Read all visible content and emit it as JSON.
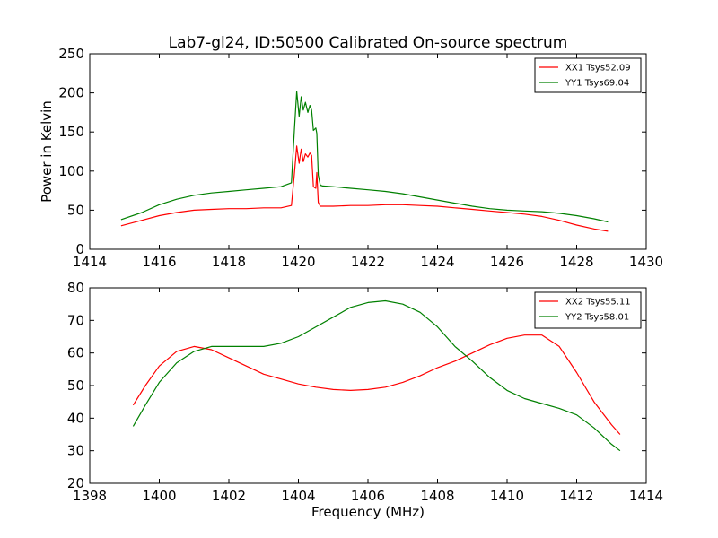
{
  "figure": {
    "title": "Lab7-gl24, ID:50500 Calibrated On-source spectrum"
  },
  "chart_data": [
    {
      "type": "line",
      "title": "Lab7-gl24, ID:50500 Calibrated On-source spectrum",
      "xlabel": "",
      "ylabel": "Power in Kelvin",
      "xlim": [
        1414,
        1430
      ],
      "ylim": [
        0,
        250
      ],
      "xticks": [
        1414,
        1416,
        1418,
        1420,
        1422,
        1424,
        1426,
        1428,
        1430
      ],
      "yticks": [
        0,
        50,
        100,
        150,
        200,
        250
      ],
      "grid": false,
      "legend_position": "top-right",
      "series": [
        {
          "name": "XX1 Tsys52.09",
          "color": "#ff0000",
          "x": [
            1414.9,
            1415.5,
            1416.0,
            1416.5,
            1417.0,
            1417.5,
            1418.0,
            1418.5,
            1419.0,
            1419.5,
            1419.8,
            1419.88,
            1419.95,
            1420.02,
            1420.08,
            1420.14,
            1420.2,
            1420.27,
            1420.33,
            1420.38,
            1420.43,
            1420.5,
            1420.53,
            1420.57,
            1420.63,
            1420.7,
            1421.0,
            1421.5,
            1422.0,
            1422.5,
            1423.0,
            1423.5,
            1424.0,
            1424.5,
            1425.0,
            1425.5,
            1426.0,
            1426.5,
            1427.0,
            1427.5,
            1428.0,
            1428.5,
            1428.9
          ],
          "values": [
            30,
            37,
            43,
            47,
            50,
            51,
            52,
            52,
            53,
            53,
            56,
            95,
            132,
            110,
            128,
            112,
            122,
            118,
            123,
            120,
            80,
            78,
            98,
            60,
            55,
            55,
            55,
            56,
            56,
            57,
            57,
            56,
            55,
            53,
            51,
            49,
            47,
            45,
            42,
            37,
            31,
            26,
            23
          ]
        },
        {
          "name": "YY1 Tsys69.04",
          "color": "#008000",
          "x": [
            1414.9,
            1415.5,
            1416.0,
            1416.5,
            1417.0,
            1417.5,
            1418.0,
            1418.5,
            1419.0,
            1419.5,
            1419.8,
            1419.88,
            1419.95,
            1420.02,
            1420.08,
            1420.14,
            1420.2,
            1420.27,
            1420.33,
            1420.38,
            1420.43,
            1420.5,
            1420.53,
            1420.57,
            1420.63,
            1420.7,
            1421.0,
            1421.5,
            1422.0,
            1422.5,
            1423.0,
            1423.5,
            1424.0,
            1424.5,
            1425.0,
            1425.5,
            1426.0,
            1426.5,
            1427.0,
            1427.5,
            1428.0,
            1428.5,
            1428.9
          ],
          "values": [
            38,
            47,
            57,
            64,
            69,
            72,
            74,
            76,
            78,
            80,
            85,
            150,
            202,
            170,
            195,
            178,
            188,
            175,
            184,
            178,
            152,
            155,
            148,
            95,
            82,
            81,
            80,
            78,
            76,
            74,
            71,
            67,
            63,
            59,
            55,
            52,
            50,
            49,
            48,
            46,
            43,
            39,
            35
          ]
        }
      ]
    },
    {
      "type": "line",
      "title": "",
      "xlabel": "Frequency (MHz)",
      "ylabel": "",
      "xlim": [
        1398,
        1414
      ],
      "ylim": [
        20,
        80
      ],
      "xticks": [
        1398,
        1400,
        1402,
        1404,
        1406,
        1408,
        1410,
        1412,
        1414
      ],
      "yticks": [
        20,
        30,
        40,
        50,
        60,
        70,
        80
      ],
      "grid": false,
      "legend_position": "top-right",
      "series": [
        {
          "name": "XX2 Tsys55.11",
          "color": "#ff0000",
          "x": [
            1399.25,
            1399.6,
            1400.0,
            1400.5,
            1401.0,
            1401.5,
            1402.0,
            1402.5,
            1403.0,
            1403.5,
            1404.0,
            1404.5,
            1405.0,
            1405.5,
            1406.0,
            1406.5,
            1407.0,
            1407.5,
            1408.0,
            1408.5,
            1409.0,
            1409.5,
            1410.0,
            1410.5,
            1411.0,
            1411.5,
            1412.0,
            1412.5,
            1413.0,
            1413.25
          ],
          "values": [
            44,
            50,
            56,
            60.5,
            62,
            61,
            58.5,
            56,
            53.5,
            52,
            50.5,
            49.5,
            48.8,
            48.5,
            48.8,
            49.5,
            51,
            53,
            55.5,
            57.5,
            60,
            62.5,
            64.5,
            65.5,
            65.5,
            62,
            54,
            45,
            38,
            35
          ]
        },
        {
          "name": "YY2 Tsys58.01",
          "color": "#008000",
          "x": [
            1399.25,
            1399.6,
            1400.0,
            1400.5,
            1401.0,
            1401.5,
            1402.0,
            1402.5,
            1403.0,
            1403.5,
            1404.0,
            1404.5,
            1405.0,
            1405.5,
            1406.0,
            1406.5,
            1407.0,
            1407.5,
            1408.0,
            1408.5,
            1409.0,
            1409.5,
            1410.0,
            1410.5,
            1411.0,
            1411.5,
            1412.0,
            1412.5,
            1413.0,
            1413.25
          ],
          "values": [
            37.5,
            44,
            51,
            57,
            60.5,
            62,
            62,
            62,
            62,
            63,
            65,
            68,
            71,
            74,
            75.5,
            76,
            75,
            72.5,
            68,
            62,
            57.5,
            52.5,
            48.5,
            46,
            44.5,
            43,
            41,
            37,
            32,
            30
          ]
        }
      ]
    }
  ]
}
